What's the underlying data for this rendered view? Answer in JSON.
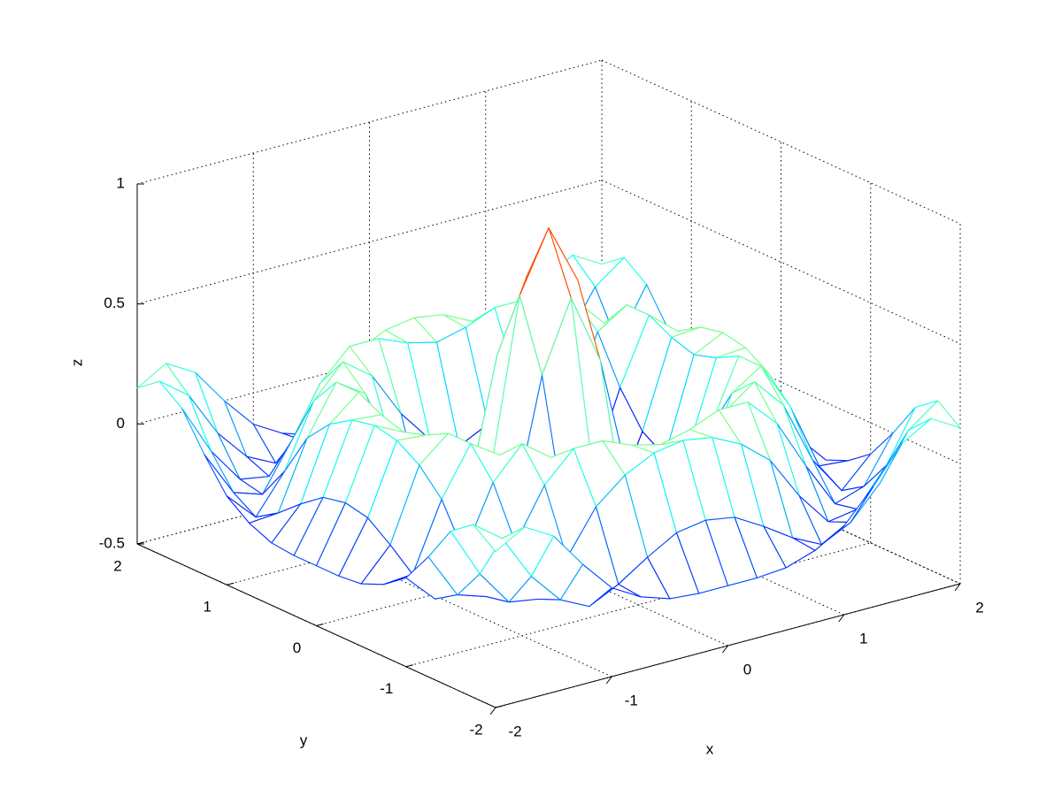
{
  "chart_data": {
    "type": "mesh",
    "xlabel": "x",
    "ylabel": "y",
    "zlabel": "z",
    "x": [
      -2,
      -1.75,
      -1.5,
      -1.25,
      -1,
      -0.75,
      -0.5,
      -0.25,
      0,
      0.25,
      0.5,
      0.75,
      1,
      1.25,
      1.5,
      1.75,
      2
    ],
    "y": [
      -2,
      -1.75,
      -1.5,
      -1.25,
      -1,
      -0.75,
      -0.5,
      -0.25,
      0,
      0.25,
      0.5,
      0.75,
      1,
      1.25,
      1.5,
      1.75,
      2
    ],
    "z": [
      [
        0.15,
        0.22,
        0.15,
        0.0,
        -0.13,
        -0.2,
        -0.24,
        -0.25,
        -0.25,
        -0.25,
        -0.24,
        -0.2,
        -0.13,
        0.0,
        0.15,
        0.22,
        0.15
      ],
      [
        0.22,
        0.13,
        -0.06,
        -0.19,
        -0.25,
        -0.19,
        -0.11,
        -0.04,
        -0.02,
        -0.04,
        -0.11,
        -0.19,
        -0.25,
        -0.19,
        -0.06,
        0.13,
        0.22
      ],
      [
        0.15,
        -0.06,
        -0.21,
        -0.23,
        -0.09,
        0.09,
        0.19,
        0.25,
        0.27,
        0.25,
        0.19,
        0.09,
        -0.09,
        -0.23,
        -0.21,
        -0.06,
        0.15
      ],
      [
        0.0,
        -0.19,
        -0.23,
        -0.04,
        0.17,
        0.29,
        0.29,
        0.24,
        0.21,
        0.24,
        0.29,
        0.29,
        0.17,
        -0.04,
        -0.23,
        -0.19,
        0.0
      ],
      [
        -0.13,
        -0.25,
        -0.09,
        0.17,
        0.3,
        0.21,
        0.02,
        -0.12,
        -0.18,
        -0.12,
        0.02,
        0.21,
        0.3,
        0.17,
        -0.09,
        -0.25,
        -0.13
      ],
      [
        -0.2,
        -0.19,
        0.09,
        0.29,
        0.21,
        -0.08,
        -0.32,
        -0.4,
        -0.4,
        -0.4,
        -0.32,
        -0.08,
        0.21,
        0.29,
        0.09,
        -0.19,
        -0.2
      ],
      [
        -0.24,
        -0.11,
        0.19,
        0.29,
        0.02,
        -0.32,
        -0.38,
        -0.18,
        -0.05,
        -0.18,
        -0.38,
        -0.32,
        0.02,
        0.29,
        0.19,
        -0.11,
        -0.24
      ],
      [
        -0.25,
        -0.04,
        0.25,
        0.24,
        -0.12,
        -0.4,
        -0.18,
        0.36,
        0.65,
        0.36,
        -0.18,
        -0.4,
        -0.12,
        0.24,
        0.25,
        -0.04,
        -0.25
      ],
      [
        -0.25,
        -0.02,
        0.27,
        0.21,
        -0.18,
        -0.4,
        -0.05,
        0.65,
        0.9,
        0.65,
        -0.05,
        -0.4,
        -0.18,
        0.21,
        0.27,
        -0.02,
        -0.25
      ],
      [
        -0.25,
        -0.04,
        0.25,
        0.24,
        -0.12,
        -0.4,
        -0.18,
        0.36,
        0.65,
        0.36,
        -0.18,
        -0.4,
        -0.12,
        0.24,
        0.25,
        -0.04,
        -0.25
      ],
      [
        -0.24,
        -0.11,
        0.19,
        0.29,
        0.02,
        -0.32,
        -0.38,
        -0.18,
        -0.05,
        -0.18,
        -0.38,
        -0.32,
        0.02,
        0.29,
        0.19,
        -0.11,
        -0.24
      ],
      [
        -0.2,
        -0.19,
        0.09,
        0.29,
        0.21,
        -0.08,
        -0.32,
        -0.4,
        -0.4,
        -0.4,
        -0.32,
        -0.08,
        0.21,
        0.29,
        0.09,
        -0.19,
        -0.2
      ],
      [
        -0.13,
        -0.25,
        -0.09,
        0.17,
        0.3,
        0.21,
        0.02,
        -0.12,
        -0.18,
        -0.12,
        0.02,
        0.21,
        0.3,
        0.17,
        -0.09,
        -0.25,
        -0.13
      ],
      [
        0.0,
        -0.19,
        -0.23,
        -0.04,
        0.17,
        0.29,
        0.29,
        0.24,
        0.21,
        0.24,
        0.29,
        0.29,
        0.17,
        -0.04,
        -0.23,
        -0.19,
        0.0
      ],
      [
        0.15,
        -0.06,
        -0.21,
        -0.23,
        -0.09,
        0.09,
        0.19,
        0.25,
        0.27,
        0.25,
        0.19,
        0.09,
        -0.09,
        -0.23,
        -0.21,
        -0.06,
        0.15
      ],
      [
        0.22,
        0.13,
        -0.06,
        -0.19,
        -0.25,
        -0.19,
        -0.11,
        -0.04,
        -0.02,
        -0.04,
        -0.11,
        -0.19,
        -0.25,
        -0.19,
        -0.06,
        0.13,
        0.22
      ],
      [
        0.15,
        0.22,
        0.15,
        0.0,
        -0.13,
        -0.2,
        -0.24,
        -0.25,
        -0.25,
        -0.25,
        -0.24,
        -0.2,
        -0.13,
        0.0,
        0.15,
        0.22,
        0.15
      ]
    ],
    "xlim": [
      -2,
      2
    ],
    "ylim": [
      -2,
      2
    ],
    "zlim": [
      -0.5,
      1
    ],
    "xticks": [
      -2,
      -1,
      0,
      1,
      2
    ],
    "yticks": [
      -2,
      -1,
      0,
      1,
      2
    ],
    "zticks": [
      -0.5,
      0,
      0.5,
      1
    ],
    "grid": true,
    "colormap": "jet"
  }
}
